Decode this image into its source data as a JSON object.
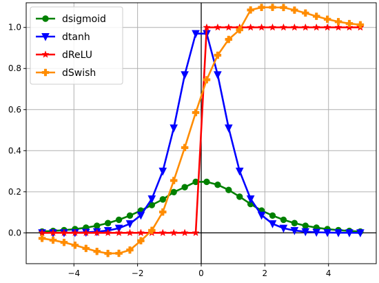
{
  "chart_data": {
    "type": "line",
    "title": "",
    "xlabel": "",
    "ylabel": "",
    "xlim": [
      -5.5,
      5.5
    ],
    "ylim": [
      -0.15,
      1.12
    ],
    "x_ticks": [
      -4,
      -2,
      0,
      2,
      4
    ],
    "x_tick_labels": [
      "−4",
      "−2",
      "0",
      "2",
      "4"
    ],
    "y_ticks": [
      0.0,
      0.2,
      0.4,
      0.6,
      0.8,
      1.0
    ],
    "y_tick_labels": [
      "0.0",
      "0.2",
      "0.4",
      "0.6",
      "0.8",
      "1.0"
    ],
    "grid": true,
    "legend_position": "top-left",
    "x": [
      -5.0,
      -4.6552,
      -4.3103,
      -3.9655,
      -3.6207,
      -3.2759,
      -2.931,
      -2.5862,
      -2.2414,
      -1.8966,
      -1.5517,
      -1.2069,
      -0.8621,
      -0.5172,
      -0.1724,
      0.1724,
      0.5172,
      0.8621,
      1.2069,
      1.5517,
      1.8966,
      2.2414,
      2.5862,
      2.931,
      3.2759,
      3.6207,
      3.9655,
      4.3103,
      4.6552,
      5.0
    ],
    "series": [
      {
        "name": "dsigmoid",
        "color": "#008000",
        "marker": "circle",
        "values": [
          0.0066,
          0.0093,
          0.0131,
          0.0182,
          0.0253,
          0.0347,
          0.0474,
          0.0637,
          0.0841,
          0.1084,
          0.1355,
          0.1629,
          0.1984,
          0.2223,
          0.2482,
          0.2482,
          0.2341,
          0.2088,
          0.1761,
          0.1403,
          0.1084,
          0.0841,
          0.0637,
          0.0474,
          0.0347,
          0.0253,
          0.0182,
          0.0131,
          0.0093,
          0.0066
        ]
      },
      {
        "name": "dtanh",
        "color": "#0000ff",
        "marker": "triangle-down",
        "values": [
          0.0002,
          0.0004,
          0.0007,
          0.0014,
          0.0029,
          0.0057,
          0.0114,
          0.0226,
          0.0443,
          0.0861,
          0.1653,
          0.3005,
          0.5108,
          0.7699,
          0.97,
          0.97,
          0.7699,
          0.5108,
          0.3005,
          0.1653,
          0.0861,
          0.0443,
          0.0226,
          0.0114,
          0.0057,
          0.0029,
          0.0014,
          0.0007,
          0.0004,
          0.0002
        ]
      },
      {
        "name": "dReLU",
        "color": "#ff0000",
        "marker": "star",
        "values": [
          0,
          0,
          0,
          0,
          0,
          0,
          0,
          0,
          0,
          0,
          0,
          0,
          0,
          0,
          0,
          1,
          1,
          1,
          1,
          1,
          1,
          1,
          1,
          1,
          1,
          1,
          1,
          1,
          1,
          1
        ]
      },
      {
        "name": "dSwish",
        "color": "#ff8c00",
        "marker": "plus",
        "values": [
          -0.0268,
          -0.0355,
          -0.0465,
          -0.0602,
          -0.0758,
          -0.0903,
          -0.1002,
          -0.0995,
          -0.0835,
          -0.0384,
          0.012,
          0.1015,
          0.2547,
          0.415,
          0.5855,
          0.7453,
          0.8646,
          0.9416,
          0.9884,
          1.0849,
          1.0974,
          1.0977,
          1.0969,
          1.0843,
          1.0699,
          1.0542,
          1.0398,
          1.0279,
          1.0188,
          1.0127
        ]
      }
    ]
  }
}
